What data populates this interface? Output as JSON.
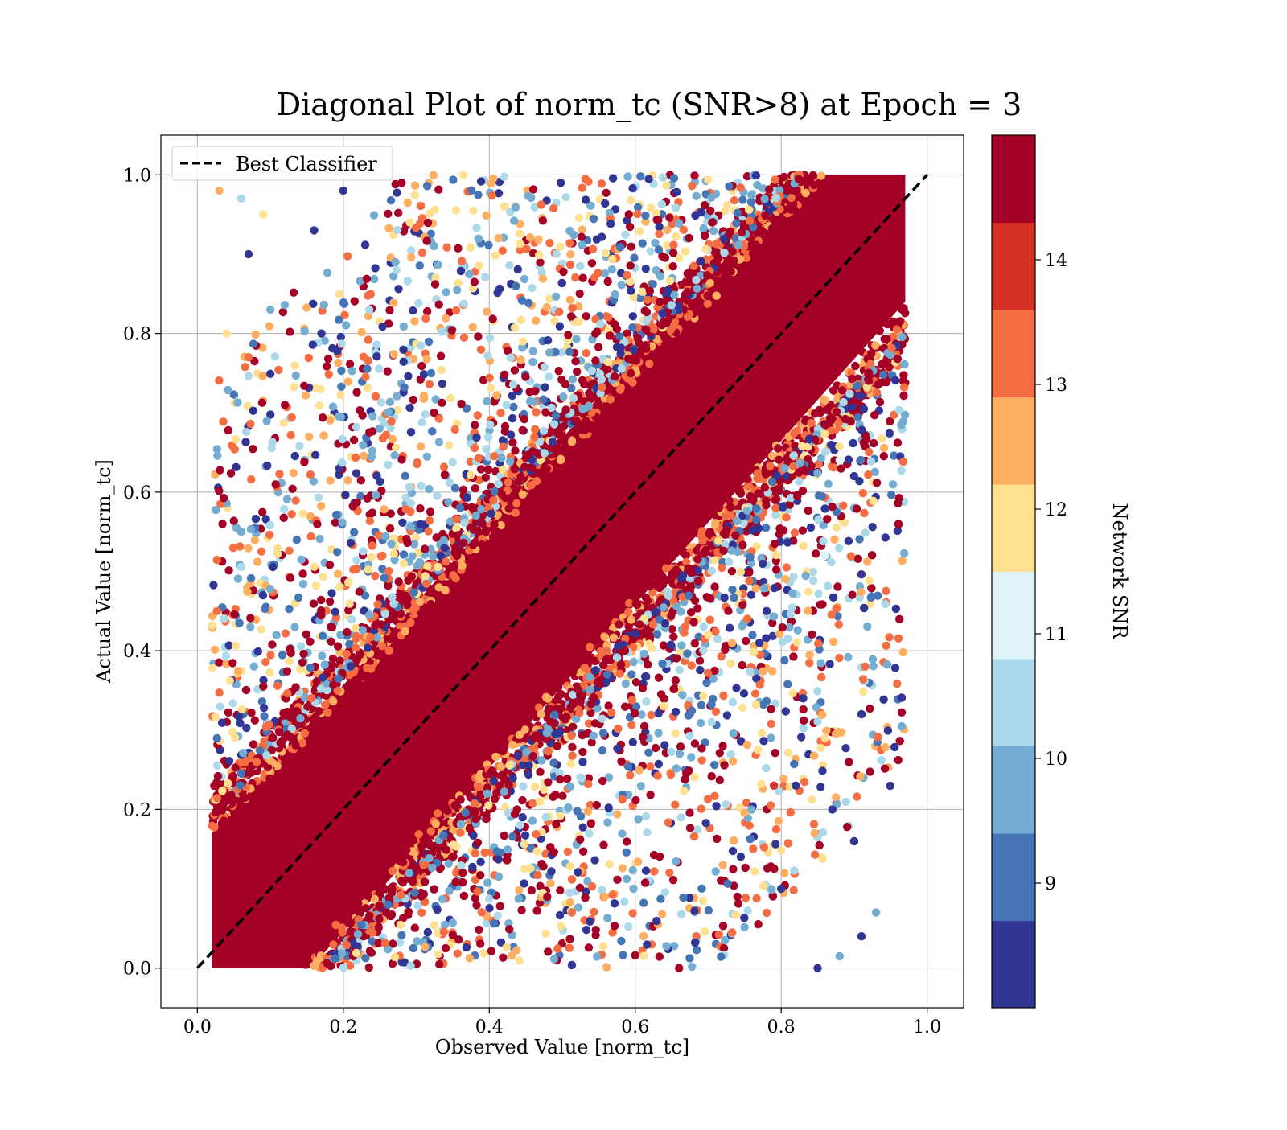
{
  "chart_data": {
    "type": "scatter",
    "title": "Diagonal Plot of norm_tc (SNR>8) at Epoch = 3",
    "xlabel": "Observed Value [norm_tc]",
    "ylabel": "Actual Value [norm_tc]",
    "xlim": [
      -0.05,
      1.05
    ],
    "ylim": [
      -0.05,
      1.05
    ],
    "xticks": [
      0.0,
      0.2,
      0.4,
      0.6,
      0.8,
      1.0
    ],
    "yticks": [
      0.0,
      0.2,
      0.4,
      0.6,
      0.8,
      1.0
    ],
    "xtick_labels": [
      "0.0",
      "0.2",
      "0.4",
      "0.6",
      "0.8",
      "1.0"
    ],
    "ytick_labels": [
      "0.0",
      "0.2",
      "0.4",
      "0.6",
      "0.8",
      "1.0"
    ],
    "grid": true,
    "legend": {
      "location": "upper-left",
      "entries": [
        {
          "label": "Best Classifier",
          "style": "dashed",
          "color": "#000000"
        }
      ]
    },
    "reference_line": {
      "name": "Best Classifier",
      "x": [
        0.0,
        1.0
      ],
      "y": [
        0.0,
        1.0
      ]
    },
    "colorbar": {
      "label": "Network SNR",
      "range": [
        8,
        15
      ],
      "ticks": [
        9,
        10,
        11,
        12,
        13,
        14
      ],
      "tick_labels": [
        "9",
        "10",
        "11",
        "12",
        "13",
        "14"
      ],
      "colors": [
        "#313695",
        "#4575b4",
        "#74add1",
        "#abd9e9",
        "#e0f3f8",
        "#fee090",
        "#fdae61",
        "#f46d43",
        "#d73027",
        "#a50026"
      ]
    },
    "scatter_description": {
      "dense_band": {
        "half_width": 0.15,
        "snr": 15
      },
      "x_range": [
        0.02,
        0.97
      ],
      "y_range": [
        0.0,
        1.0
      ]
    },
    "sample_points": [
      {
        "x": 0.03,
        "y": 0.98,
        "snr": 12.5
      },
      {
        "x": 0.06,
        "y": 0.97,
        "snr": 10.5
      },
      {
        "x": 0.07,
        "y": 0.9,
        "snr": 8.2
      },
      {
        "x": 0.09,
        "y": 0.95,
        "snr": 12.0
      },
      {
        "x": 0.12,
        "y": 0.71,
        "snr": 14.8
      },
      {
        "x": 0.16,
        "y": 0.93,
        "snr": 8.5
      },
      {
        "x": 0.2,
        "y": 0.98,
        "snr": 8.3
      },
      {
        "x": 0.28,
        "y": 0.99,
        "snr": 14.9
      },
      {
        "x": 0.07,
        "y": 0.77,
        "snr": 13.5
      },
      {
        "x": 0.04,
        "y": 0.8,
        "snr": 12.0
      },
      {
        "x": 0.1,
        "y": 0.83,
        "snr": 10.0
      },
      {
        "x": 0.17,
        "y": 0.8,
        "snr": 8.4
      },
      {
        "x": 0.09,
        "y": 0.47,
        "snr": 8.6
      },
      {
        "x": 0.06,
        "y": 0.55,
        "snr": 9.5
      },
      {
        "x": 0.91,
        "y": 0.32,
        "snr": 8.3
      },
      {
        "x": 0.86,
        "y": 0.29,
        "snr": 12.0
      },
      {
        "x": 0.72,
        "y": 0.28,
        "snr": 14.5
      },
      {
        "x": 0.83,
        "y": 0.34,
        "snr": 8.5
      },
      {
        "x": 0.87,
        "y": 0.2,
        "snr": 8.3
      },
      {
        "x": 0.9,
        "y": 0.16,
        "snr": 8.4
      },
      {
        "x": 0.93,
        "y": 0.07,
        "snr": 9.5
      },
      {
        "x": 0.91,
        "y": 0.04,
        "snr": 8.3
      },
      {
        "x": 0.85,
        "y": 0.0,
        "snr": 8.2
      },
      {
        "x": 0.88,
        "y": 0.015,
        "snr": 10.0
      },
      {
        "x": 0.66,
        "y": 0.0,
        "snr": 14.8
      },
      {
        "x": 0.72,
        "y": 0.13,
        "snr": 12.5
      },
      {
        "x": 0.74,
        "y": 0.09,
        "snr": 14.5
      },
      {
        "x": 0.77,
        "y": 0.41,
        "snr": 8.3
      },
      {
        "x": 0.79,
        "y": 0.23,
        "snr": 13.9
      },
      {
        "x": 0.82,
        "y": 0.23,
        "snr": 8.4
      },
      {
        "x": 0.8,
        "y": 0.1,
        "snr": 8.5
      },
      {
        "x": 0.86,
        "y": 0.52,
        "snr": 11.0
      },
      {
        "x": 0.9,
        "y": 0.62,
        "snr": 8.4
      },
      {
        "x": 0.88,
        "y": 0.64,
        "snr": 11.0
      },
      {
        "x": 0.78,
        "y": 0.45,
        "snr": 8.3
      },
      {
        "x": 0.7,
        "y": 0.42,
        "snr": 12.0
      }
    ]
  }
}
